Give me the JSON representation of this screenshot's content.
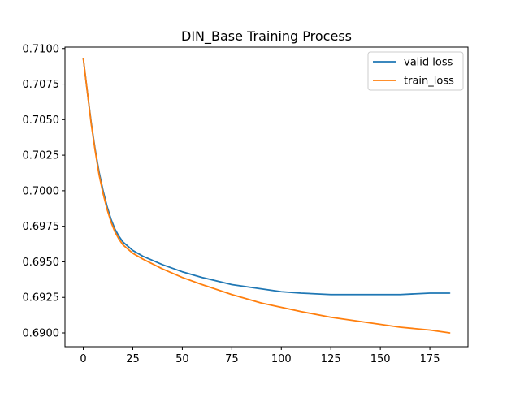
{
  "chart_data": {
    "type": "line",
    "title": "DIN_Base Training Process",
    "xlabel": "",
    "ylabel": "",
    "xlim": [
      -9.25,
      194.25
    ],
    "ylim": [
      0.68903,
      0.7101
    ],
    "x_ticks": [
      0,
      25,
      50,
      75,
      100,
      125,
      150,
      175
    ],
    "x_tick_labels": [
      "0",
      "25",
      "50",
      "75",
      "100",
      "125",
      "150",
      "175"
    ],
    "y_ticks": [
      0.69,
      0.6925,
      0.695,
      0.6975,
      0.7,
      0.7025,
      0.705,
      0.7075,
      0.71
    ],
    "y_tick_labels": [
      "0.6900",
      "0.6925",
      "0.6950",
      "0.6975",
      "0.7000",
      "0.7025",
      "0.7050",
      "0.7075",
      "0.7100"
    ],
    "grid": false,
    "legend_position": "upper right",
    "series": [
      {
        "name": "valid loss",
        "color": "#1f77b4",
        "x": [
          0,
          2,
          4,
          6,
          8,
          10,
          12,
          14,
          16,
          18,
          20,
          25,
          30,
          40,
          50,
          60,
          75,
          90,
          100,
          110,
          125,
          140,
          150,
          160,
          175,
          185
        ],
        "y": [
          0.7093,
          0.707,
          0.7048,
          0.7029,
          0.7013,
          0.7,
          0.6989,
          0.698,
          0.6973,
          0.6968,
          0.6964,
          0.6958,
          0.6954,
          0.6948,
          0.6943,
          0.6939,
          0.6934,
          0.6931,
          0.6929,
          0.6928,
          0.6927,
          0.6927,
          0.6927,
          0.6927,
          0.6928,
          0.6928
        ]
      },
      {
        "name": "train_loss",
        "color": "#ff7f0e",
        "x": [
          0,
          2,
          4,
          6,
          8,
          10,
          12,
          14,
          16,
          18,
          20,
          25,
          30,
          40,
          50,
          60,
          75,
          90,
          100,
          110,
          125,
          140,
          150,
          160,
          175,
          185
        ],
        "y": [
          0.7093,
          0.707,
          0.7047,
          0.7028,
          0.7011,
          0.6998,
          0.6987,
          0.6978,
          0.6971,
          0.6966,
          0.6962,
          0.6956,
          0.6952,
          0.6945,
          0.6939,
          0.6934,
          0.6927,
          0.6921,
          0.6918,
          0.6915,
          0.6911,
          0.6908,
          0.6906,
          0.6904,
          0.6902,
          0.69
        ]
      }
    ]
  }
}
